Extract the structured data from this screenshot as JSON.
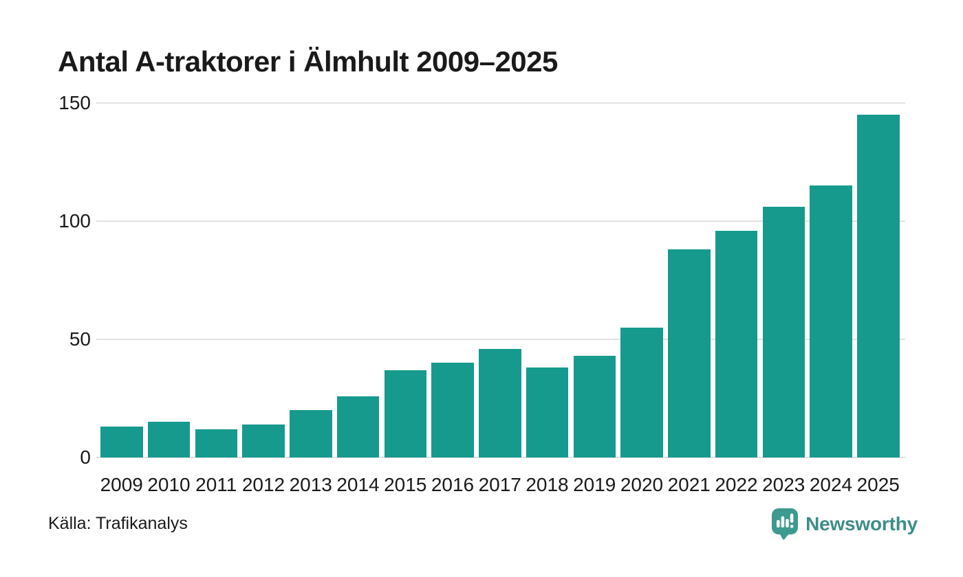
{
  "title": "Antal A-traktorer i Älmhult 2009–2025",
  "source": "Källa: Trafikanalys",
  "branding": {
    "name": "Newsworthy",
    "icon": "newsworthy-pin-barchart-icon"
  },
  "colors": {
    "bar": "#169a8d",
    "gridline": "#e2e2e2",
    "text": "#1a1a1a",
    "logo_icon": "#3c9a8f",
    "logo_text": "#3e8d89",
    "background": "#ffffff"
  },
  "chart_data": {
    "type": "bar",
    "title": "Antal A-traktorer i Älmhult 2009–2025",
    "categories": [
      "2009",
      "2010",
      "2011",
      "2012",
      "2013",
      "2014",
      "2015",
      "2016",
      "2017",
      "2018",
      "2019",
      "2020",
      "2021",
      "2022",
      "2023",
      "2024",
      "2025"
    ],
    "values": [
      13,
      15,
      12,
      14,
      20,
      26,
      37,
      40,
      46,
      38,
      43,
      55,
      88,
      96,
      106,
      115,
      145
    ],
    "xlabel": "",
    "ylabel": "",
    "ylim": [
      0,
      150
    ],
    "yticks": [
      0,
      50,
      100,
      150
    ],
    "grid": true,
    "legend": false,
    "bar_color": "#169a8d"
  }
}
